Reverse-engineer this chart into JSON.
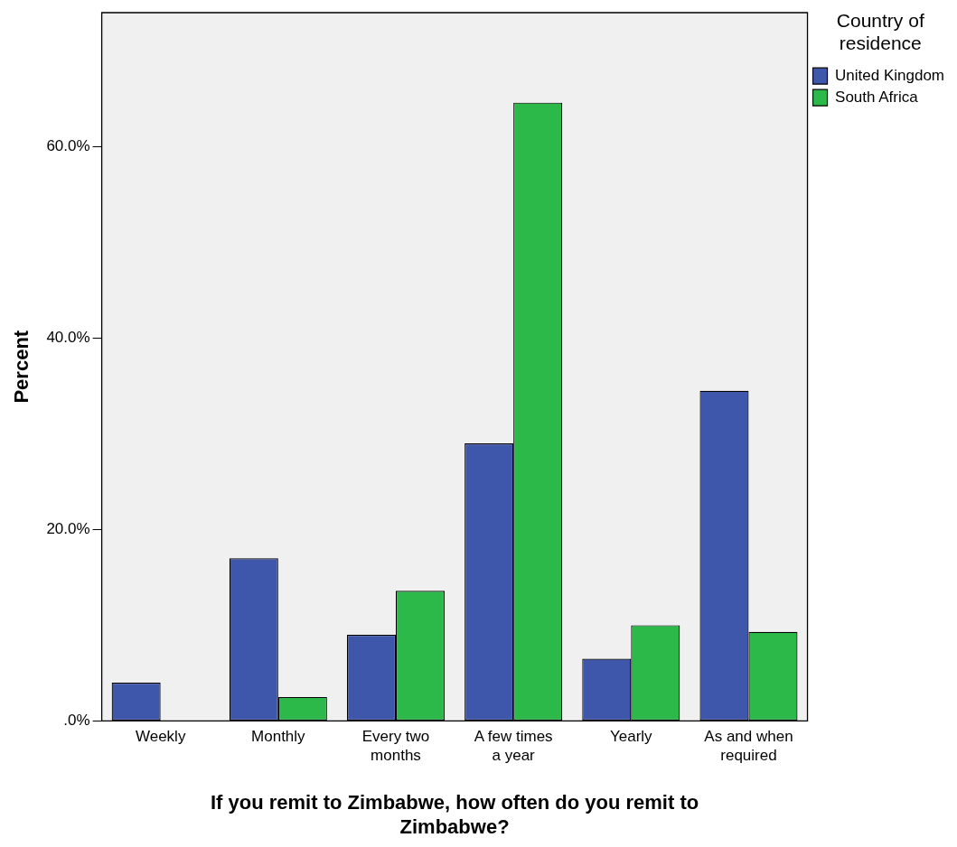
{
  "chart_data": {
    "type": "bar",
    "xlabel": "If you remit to Zimbabwe, how often do you remit to Zimbabwe?",
    "ylabel": "Percent",
    "legend_title": "Country of residence",
    "categories": [
      "Weekly",
      "Monthly",
      "Every two months",
      "A few times a year",
      "Yearly",
      "As and when required"
    ],
    "series": [
      {
        "name": "United Kingdom",
        "color": "#3f57ab",
        "values": [
          4.0,
          17.0,
          9.0,
          29.0,
          6.5,
          34.5
        ]
      },
      {
        "name": "South Africa",
        "color": "#2db84a",
        "values": [
          0,
          2.5,
          13.6,
          64.6,
          10.0,
          9.3
        ]
      }
    ],
    "ylim": [
      0,
      74
    ],
    "yticks": [
      {
        "value": 0,
        "label": ".0%"
      },
      {
        "value": 20,
        "label": "20.0%"
      },
      {
        "value": 40,
        "label": "40.0%"
      },
      {
        "value": 60,
        "label": "60.0%"
      }
    ],
    "grid": false,
    "legend": "right"
  }
}
